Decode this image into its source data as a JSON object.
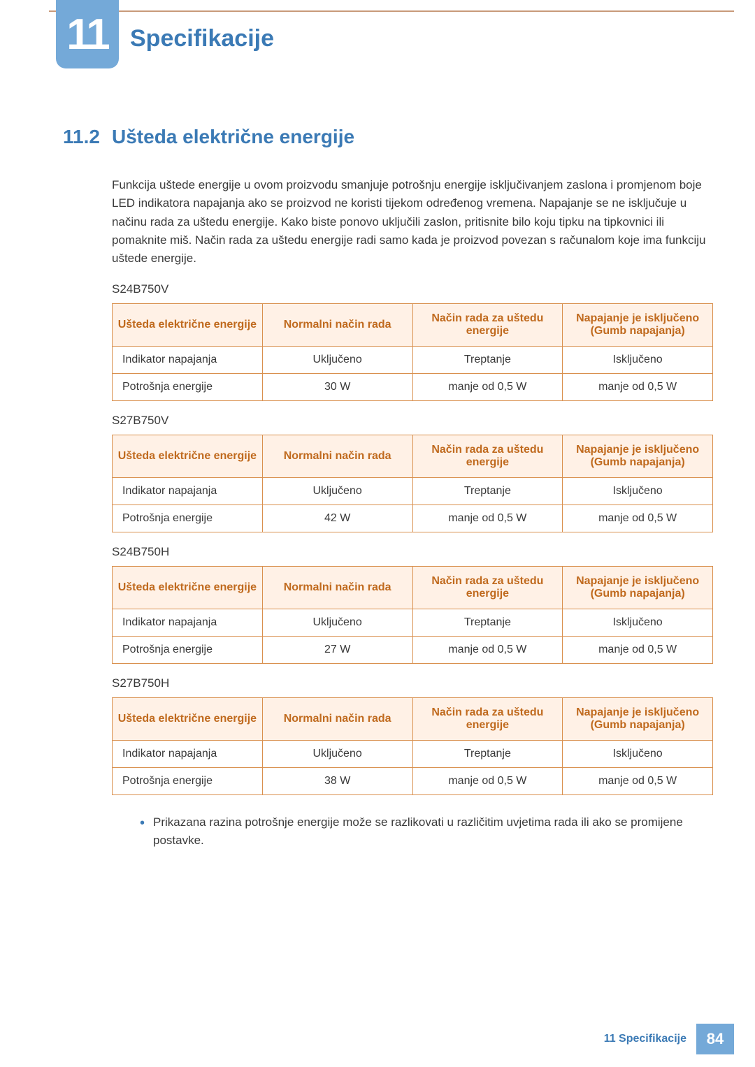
{
  "chapter": {
    "number": "11",
    "title": "Specifikacije"
  },
  "section": {
    "number": "11.2",
    "title": "Ušteda električne energije"
  },
  "body_text": "Funkcija uštede energije u ovom proizvodu smanjuje potrošnju energije isključivanjem zaslona i promjenom boje LED indikatora napajanja ako se proizvod ne koristi tijekom određenog vremena. Napajanje se ne isključuje u načinu rada za uštedu energije. Kako biste ponovo uključili zaslon, pritisnite bilo koju tipku na tipkovnici ili pomaknite miš. Način rada za uštedu energije radi samo kada je proizvod povezan s računalom koje ima funkciju uštede energije.",
  "headers": {
    "col1": "Ušteda električne energije",
    "col2": "Normalni način rada",
    "col3": "Način rada za uštedu energije",
    "col4": "Napajanje je isključeno (Gumb napajanja)"
  },
  "row_labels": {
    "indicator": "Indikator napajanja",
    "consumption": "Potrošnja energije"
  },
  "tables": [
    {
      "model": "S24B750V",
      "indicator": [
        "Uključeno",
        "Treptanje",
        "Isključeno"
      ],
      "consumption": [
        "30 W",
        "manje od 0,5 W",
        "manje od 0,5 W"
      ]
    },
    {
      "model": "S27B750V",
      "indicator": [
        "Uključeno",
        "Treptanje",
        "Isključeno"
      ],
      "consumption": [
        "42 W",
        "manje od 0,5 W",
        "manje od 0,5 W"
      ]
    },
    {
      "model": "S24B750H",
      "indicator": [
        "Uključeno",
        "Treptanje",
        "Isključeno"
      ],
      "consumption": [
        "27 W",
        "manje od 0,5 W",
        "manje od 0,5 W"
      ]
    },
    {
      "model": "S27B750H",
      "indicator": [
        "Uključeno",
        "Treptanje",
        "Isključeno"
      ],
      "consumption": [
        "38 W",
        "manje od 0,5 W",
        "manje od 0,5 W"
      ]
    }
  ],
  "note": "Prikazana razina potrošnje energije može se razlikovati u različitim uvjetima rada ili ako se promijene postavke.",
  "footer": {
    "label": "11 Specifikacije",
    "page": "84"
  },
  "colors": {
    "accent_blue": "#3b7ab5",
    "block_blue": "#74a9d8",
    "rule_brown": "#c89a7a",
    "table_border": "#d9904e",
    "table_header_bg": "#fff1e6",
    "table_header_fg": "#c06a1e",
    "body_fg": "#3a3a3a",
    "page_bg": "#ffffff"
  },
  "typography": {
    "title_pt": 34,
    "section_pt": 28,
    "body_pt": 17,
    "table_pt": 16,
    "chapter_num_pt": 62
  }
}
